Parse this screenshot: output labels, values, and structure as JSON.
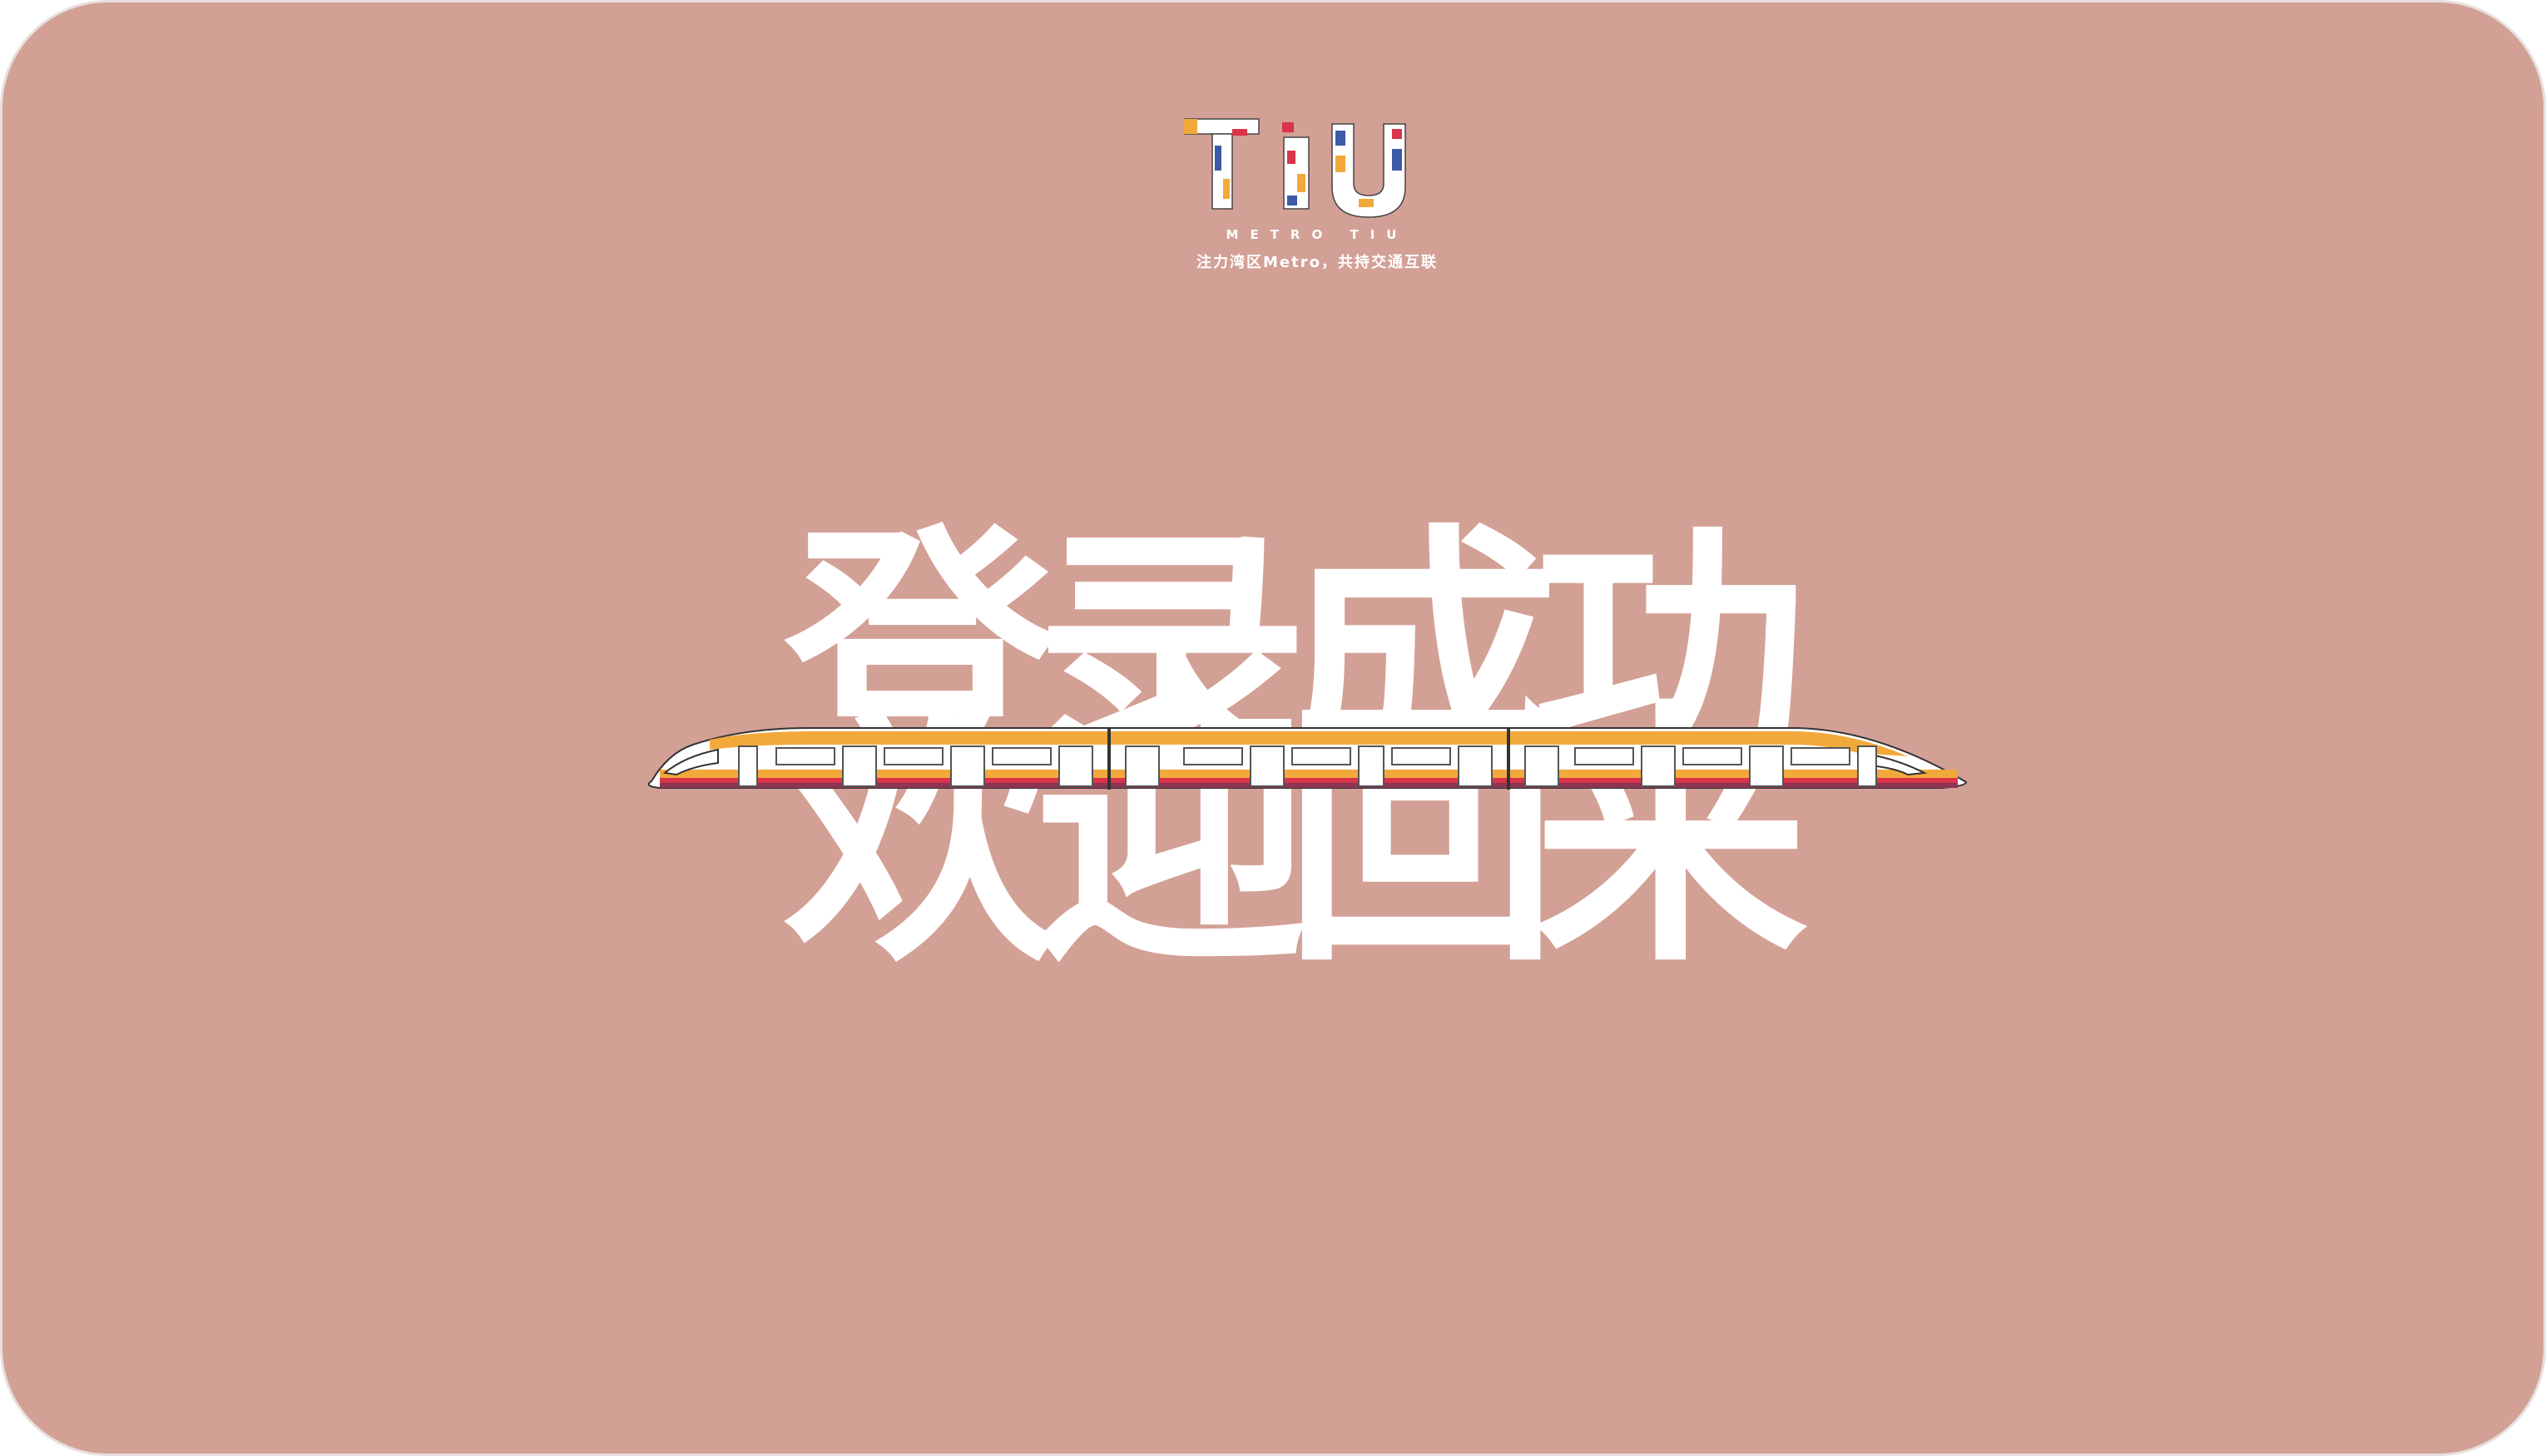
{
  "brand": {
    "logo_letters": "TIU",
    "subtitle": "METRO TIU",
    "slogan": "注力湾区Metro，共持交通互联"
  },
  "message": {
    "line1": "登录成功",
    "line2": "欢迎回来"
  },
  "colors": {
    "background": "#d3a096",
    "text": "#ffffff",
    "train_body": "#f2a93b",
    "train_stripe": "#d9344a",
    "logo_blue": "#3d5aa8",
    "logo_red": "#d9344a",
    "logo_orange": "#f2a93b"
  },
  "illustration": {
    "icon": "train-icon"
  }
}
